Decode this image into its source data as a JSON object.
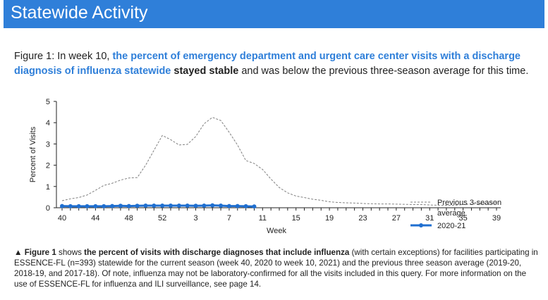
{
  "banner": {
    "title": "Statewide Activity"
  },
  "figure_caption": {
    "prefix": "Figure 1: In week 10, ",
    "highlight": "the percent of emergency department and urgent care center visits with a discharge diagnosis of influenza statewide",
    "space": " ",
    "bold": "stayed stable",
    "suffix": " and was below the previous three-season average for this time."
  },
  "chart_data": {
    "type": "line",
    "ylabel": "Percent of Visits",
    "xlabel": "Week",
    "ylim": [
      0,
      5
    ],
    "yticks": [
      "0",
      "1",
      "2",
      "3",
      "4",
      "5"
    ],
    "x_tick_labels": [
      "40",
      "44",
      "48",
      "52",
      "3",
      "7",
      "11",
      "15",
      "19",
      "23",
      "27",
      "31",
      "35",
      "39"
    ],
    "weeks": [
      "40",
      "41",
      "42",
      "43",
      "44",
      "45",
      "46",
      "47",
      "48",
      "49",
      "50",
      "51",
      "52",
      "53",
      "1",
      "2",
      "3",
      "4",
      "5",
      "6",
      "7",
      "8",
      "9",
      "10",
      "11",
      "12",
      "13",
      "14",
      "15",
      "16",
      "17",
      "18",
      "19",
      "20",
      "21",
      "22",
      "23",
      "24",
      "25",
      "26",
      "27",
      "28",
      "29",
      "30",
      "31",
      "32",
      "33",
      "34",
      "35",
      "36",
      "37",
      "38",
      "39"
    ],
    "legend_placement": "top-right",
    "series": [
      {
        "name": "Previous 3-season average",
        "style": "dashed",
        "color": "#808080",
        "values": [
          0.33,
          0.42,
          0.48,
          0.6,
          0.82,
          1.05,
          1.15,
          1.3,
          1.4,
          1.42,
          2.0,
          2.7,
          3.4,
          3.2,
          2.95,
          2.98,
          3.35,
          3.95,
          4.25,
          4.1,
          3.55,
          2.95,
          2.22,
          2.08,
          1.8,
          1.35,
          0.95,
          0.7,
          0.55,
          0.48,
          0.4,
          0.35,
          0.28,
          0.25,
          0.23,
          0.22,
          0.2,
          0.19,
          0.18,
          0.18,
          0.17,
          0.16,
          0.15,
          0.15,
          0.13,
          0.12,
          0.11,
          0.12,
          0.15,
          0.17,
          0.18,
          0.2,
          0.24
        ]
      },
      {
        "name": "2020-21",
        "style": "solid-markers",
        "color": "#1F6FD0",
        "values": [
          0.08,
          0.07,
          0.07,
          0.07,
          0.07,
          0.07,
          0.08,
          0.09,
          0.08,
          0.09,
          0.1,
          0.1,
          0.1,
          0.1,
          0.1,
          0.1,
          0.09,
          0.1,
          0.11,
          0.1,
          0.08,
          0.08,
          0.07,
          0.06
        ]
      }
    ]
  },
  "legend": {
    "avg_line1": "Previous 3-season",
    "avg_line2": "average",
    "current": "2020-21"
  },
  "footnote": {
    "marker": "▲ Figure 1",
    "part1": " shows ",
    "bold1": "the percent of visits with discharge diagnoses that include influenza",
    "part2": " (with certain exceptions) for facilities participating in ESSENCE-FL (n=393) statewide for the current season (week 40, 2020 to week 10, 2021) and the previous three season average (2019-20, 2018-19, and 2017-18). Of note, influenza may not be laboratory-confirmed for all the visits included in this query. For more information on the use of ESSENCE-FL for influenza and ILI surveillance, see page 14."
  }
}
